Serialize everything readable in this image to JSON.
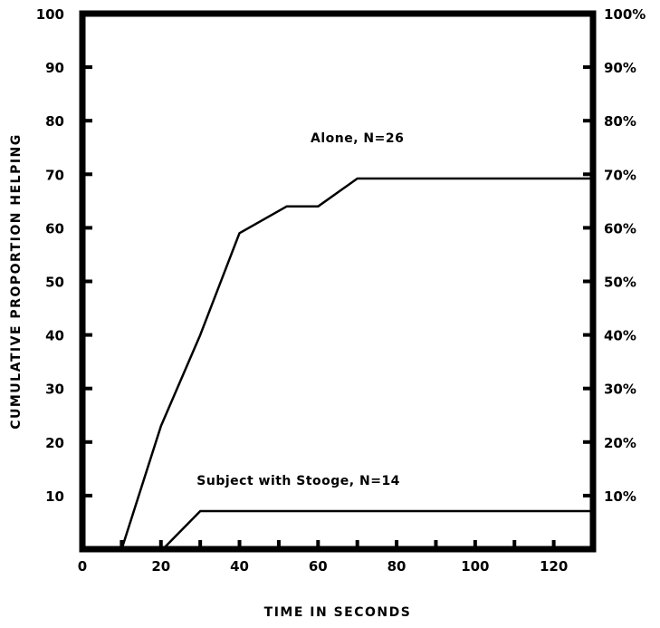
{
  "chart_data": {
    "type": "line",
    "xlabel": "TIME IN SECONDS",
    "ylabel": "CUMULATIVE PROPORTION HELPING",
    "xlim": [
      0,
      130
    ],
    "ylim": [
      0,
      100
    ],
    "x_ticks": [
      0,
      20,
      40,
      60,
      80,
      100,
      120
    ],
    "x_tick_labels": [
      "0",
      "20",
      "40",
      "60",
      "80",
      "100",
      "120"
    ],
    "x_minor_ticks": [
      10,
      30,
      50,
      70,
      90,
      110
    ],
    "y_ticks": [
      10,
      20,
      30,
      40,
      50,
      60,
      70,
      80,
      90,
      100
    ],
    "y_tick_labels": [
      "10",
      "20",
      "30",
      "40",
      "50",
      "60",
      "70",
      "80",
      "90",
      "100"
    ],
    "y2_ticks": [
      10,
      20,
      30,
      40,
      50,
      60,
      70,
      80,
      90,
      100
    ],
    "y2_tick_labels": [
      "10%",
      "20%",
      "30%",
      "40%",
      "50%",
      "60%",
      "70%",
      "80%",
      "90%",
      "100%"
    ],
    "grid": false,
    "series": [
      {
        "name": "Alone, N=26",
        "label_anchor": [
          70,
          76
        ],
        "points": [
          [
            10,
            0
          ],
          [
            20,
            23
          ],
          [
            30,
            40
          ],
          [
            40,
            59
          ],
          [
            52,
            64
          ],
          [
            60,
            64
          ],
          [
            70,
            69.2
          ],
          [
            130,
            69.2
          ]
        ]
      },
      {
        "name": "Subject with Stooge, N=14",
        "label_anchor": [
          55,
          12
        ],
        "points": [
          [
            20.5,
            0
          ],
          [
            30,
            7.1
          ],
          [
            130,
            7.1
          ]
        ]
      }
    ]
  }
}
